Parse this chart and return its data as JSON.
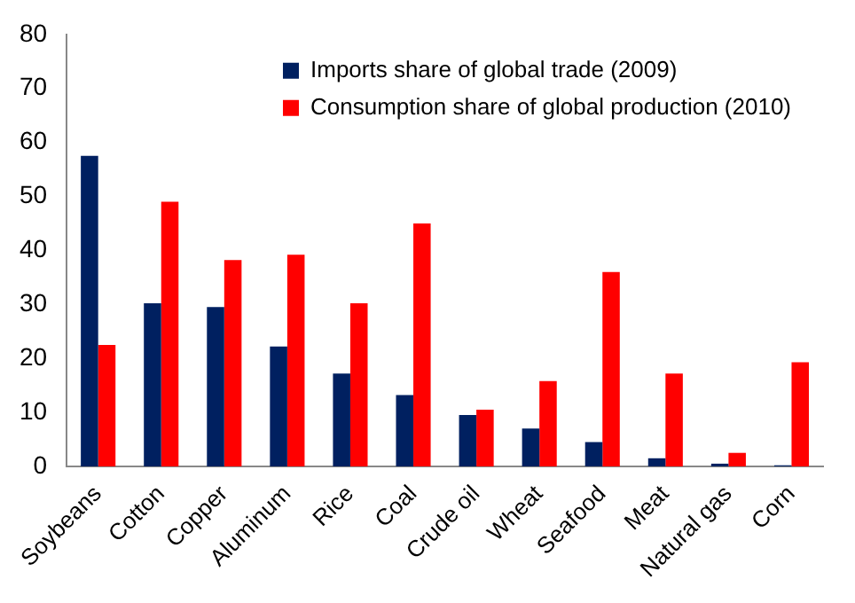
{
  "chart_data": {
    "type": "bar",
    "categories": [
      "Soybeans",
      "Cotton",
      "Copper",
      "Aluminum",
      "Rice",
      "Coal",
      "Crude oil",
      "Wheat",
      "Seafood",
      "Meat",
      "Natural gas",
      "Corn"
    ],
    "series": [
      {
        "name": "Imports share of global trade (2009)",
        "color": "#002060",
        "values": [
          57.5,
          30.2,
          29.5,
          22.2,
          17.2,
          13.2,
          9.5,
          7,
          4.5,
          1.5,
          0.5,
          0.2
        ]
      },
      {
        "name": "Consumption share of global production (2010)",
        "color": "#ff0000",
        "values": [
          22.5,
          49,
          38.2,
          39.2,
          30.2,
          45,
          10.5,
          15.8,
          36,
          17.2,
          2.5,
          19.3
        ]
      }
    ],
    "ylim": [
      0,
      80
    ],
    "yticks": [
      0,
      10,
      20,
      30,
      40,
      50,
      60,
      70,
      80
    ],
    "grid": false,
    "legend": "top right"
  }
}
